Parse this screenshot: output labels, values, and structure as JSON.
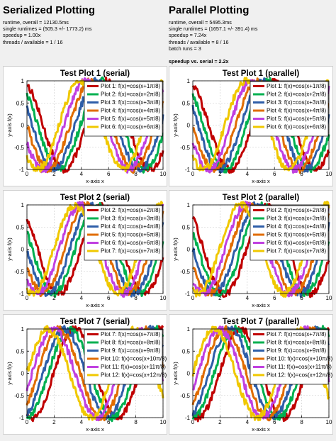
{
  "serial": {
    "title": "Serialized Plotting",
    "stats": [
      "runtime, overall = 12130.5ms",
      "single runtimes = (505.3 +/- 1773.2) ms",
      "speedup = 1.00x",
      "threads / available = 1 / 16"
    ]
  },
  "parallel": {
    "title": "Parallel Plotting",
    "stats": [
      "runtime, overall = 5495.3ms",
      "single runtimes = (1657.1 +/- 391.4) ms",
      "speedup = 7.24x",
      "threads / available = 8 / 16",
      "batch runs = 3"
    ],
    "speedup_vs_serial": "speedup vs. serial = 2.2x"
  },
  "colors": [
    "#c00000",
    "#00b050",
    "#2e5ea8",
    "#e06c00",
    "#c040e0",
    "#f0c800"
  ],
  "axis": {
    "xlabel": "x-axis x",
    "ylabel": "y-axis f(x)"
  },
  "chart_data": [
    {
      "type": "line",
      "title": "Test Plot 1 (serial)",
      "xlabel": "x-axis x",
      "ylabel": "y-axis f(x)",
      "xlim": [
        0,
        10
      ],
      "ylim": [
        -1,
        1
      ],
      "xticks": [
        0,
        2,
        4,
        6,
        8,
        10
      ],
      "yticks": [
        -1,
        -0.5,
        0,
        0.5,
        1
      ],
      "legend_position": "top-right",
      "series": [
        {
          "name": "Plot 1: f(x)=cos(x+1π/8)",
          "phase_pi_eighths": 1
        },
        {
          "name": "Plot 2: f(x)=cos(x+2π/8)",
          "phase_pi_eighths": 2
        },
        {
          "name": "Plot 3: f(x)=cos(x+3π/8)",
          "phase_pi_eighths": 3
        },
        {
          "name": "Plot 4: f(x)=cos(x+4π/8)",
          "phase_pi_eighths": 4
        },
        {
          "name": "Plot 5: f(x)=cos(x+5π/8)",
          "phase_pi_eighths": 5
        },
        {
          "name": "Plot 6: f(x)=cos(x+6π/8)",
          "phase_pi_eighths": 6
        }
      ]
    },
    {
      "type": "line",
      "title": "Test Plot 1 (parallel)",
      "xlabel": "x-axis x",
      "ylabel": "y-axis f(x)",
      "xlim": [
        0,
        10
      ],
      "ylim": [
        -1,
        1
      ],
      "xticks": [
        0,
        2,
        4,
        6,
        8,
        10
      ],
      "yticks": [
        -1,
        -0.5,
        0,
        0.5,
        1
      ],
      "legend_position": "top-right",
      "series": [
        {
          "name": "Plot 1: f(x)=cos(x+1π/8)",
          "phase_pi_eighths": 1
        },
        {
          "name": "Plot 2: f(x)=cos(x+2π/8)",
          "phase_pi_eighths": 2
        },
        {
          "name": "Plot 3: f(x)=cos(x+3π/8)",
          "phase_pi_eighths": 3
        },
        {
          "name": "Plot 4: f(x)=cos(x+4π/8)",
          "phase_pi_eighths": 4
        },
        {
          "name": "Plot 5: f(x)=cos(x+5π/8)",
          "phase_pi_eighths": 5
        },
        {
          "name": "Plot 6: f(x)=cos(x+6π/8)",
          "phase_pi_eighths": 6
        }
      ]
    },
    {
      "type": "line",
      "title": "Test Plot 2 (serial)",
      "xlabel": "x-axis x",
      "ylabel": "y-axis f(x)",
      "xlim": [
        0,
        10
      ],
      "ylim": [
        -1,
        1
      ],
      "xticks": [
        0,
        2,
        4,
        6,
        8,
        10
      ],
      "yticks": [
        -1,
        -0.5,
        0,
        0.5,
        1
      ],
      "legend_position": "top-right",
      "series": [
        {
          "name": "Plot 2: f(x)=cos(x+2π/8)",
          "phase_pi_eighths": 2
        },
        {
          "name": "Plot 3: f(x)=cos(x+3π/8)",
          "phase_pi_eighths": 3
        },
        {
          "name": "Plot 4: f(x)=cos(x+4π/8)",
          "phase_pi_eighths": 4
        },
        {
          "name": "Plot 5: f(x)=cos(x+5π/8)",
          "phase_pi_eighths": 5
        },
        {
          "name": "Plot 6: f(x)=cos(x+6π/8)",
          "phase_pi_eighths": 6
        },
        {
          "name": "Plot 7: f(x)=cos(x+7π/8)",
          "phase_pi_eighths": 7
        }
      ]
    },
    {
      "type": "line",
      "title": "Test Plot 2 (parallel)",
      "xlabel": "x-axis x",
      "ylabel": "y-axis f(x)",
      "xlim": [
        0,
        10
      ],
      "ylim": [
        -1,
        1
      ],
      "xticks": [
        0,
        2,
        4,
        6,
        8,
        10
      ],
      "yticks": [
        -1,
        -0.5,
        0,
        0.5,
        1
      ],
      "legend_position": "top-right",
      "series": [
        {
          "name": "Plot 2: f(x)=cos(x+2π/8)",
          "phase_pi_eighths": 2
        },
        {
          "name": "Plot 3: f(x)=cos(x+3π/8)",
          "phase_pi_eighths": 3
        },
        {
          "name": "Plot 4: f(x)=cos(x+4π/8)",
          "phase_pi_eighths": 4
        },
        {
          "name": "Plot 5: f(x)=cos(x+5π/8)",
          "phase_pi_eighths": 5
        },
        {
          "name": "Plot 6: f(x)=cos(x+6π/8)",
          "phase_pi_eighths": 6
        },
        {
          "name": "Plot 7: f(x)=cos(x+7π/8)",
          "phase_pi_eighths": 7
        }
      ]
    },
    {
      "type": "line",
      "title": "Test Plot 7 (serial)",
      "xlabel": "x-axis x",
      "ylabel": "y-axis f(x)",
      "xlim": [
        0,
        10
      ],
      "ylim": [
        -1,
        1
      ],
      "xticks": [
        0,
        2,
        4,
        6,
        8,
        10
      ],
      "yticks": [
        -1,
        -0.5,
        0,
        0.5,
        1
      ],
      "legend_position": "top-right",
      "series": [
        {
          "name": "Plot 7: f(x)=cos(x+7π/8)",
          "phase_pi_eighths": 7
        },
        {
          "name": "Plot 8: f(x)=cos(x+8π/8)",
          "phase_pi_eighths": 8
        },
        {
          "name": "Plot 9: f(x)=cos(x+9π/8)",
          "phase_pi_eighths": 9
        },
        {
          "name": "Plot 10: f(x)=cos(x+10π/8)",
          "phase_pi_eighths": 10
        },
        {
          "name": "Plot 11: f(x)=cos(x+11π/8)",
          "phase_pi_eighths": 11
        },
        {
          "name": "Plot 12: f(x)=cos(x+12π/8)",
          "phase_pi_eighths": 12
        }
      ]
    },
    {
      "type": "line",
      "title": "Test Plot 7 (parallel)",
      "xlabel": "x-axis x",
      "ylabel": "y-axis f(x)",
      "xlim": [
        0,
        10
      ],
      "ylim": [
        -1,
        1
      ],
      "xticks": [
        0,
        2,
        4,
        6,
        8,
        10
      ],
      "yticks": [
        -1,
        -0.5,
        0,
        0.5,
        1
      ],
      "legend_position": "top-right",
      "series": [
        {
          "name": "Plot 7: f(x)=cos(x+7π/8)",
          "phase_pi_eighths": 7
        },
        {
          "name": "Plot 8: f(x)=cos(x+8π/8)",
          "phase_pi_eighths": 8
        },
        {
          "name": "Plot 9: f(x)=cos(x+9π/8)",
          "phase_pi_eighths": 9
        },
        {
          "name": "Plot 10: f(x)=cos(x+10π/8)",
          "phase_pi_eighths": 10
        },
        {
          "name": "Plot 11: f(x)=cos(x+11π/8)",
          "phase_pi_eighths": 11
        },
        {
          "name": "Plot 12: f(x)=cos(x+12π/8)",
          "phase_pi_eighths": 12
        }
      ]
    }
  ]
}
